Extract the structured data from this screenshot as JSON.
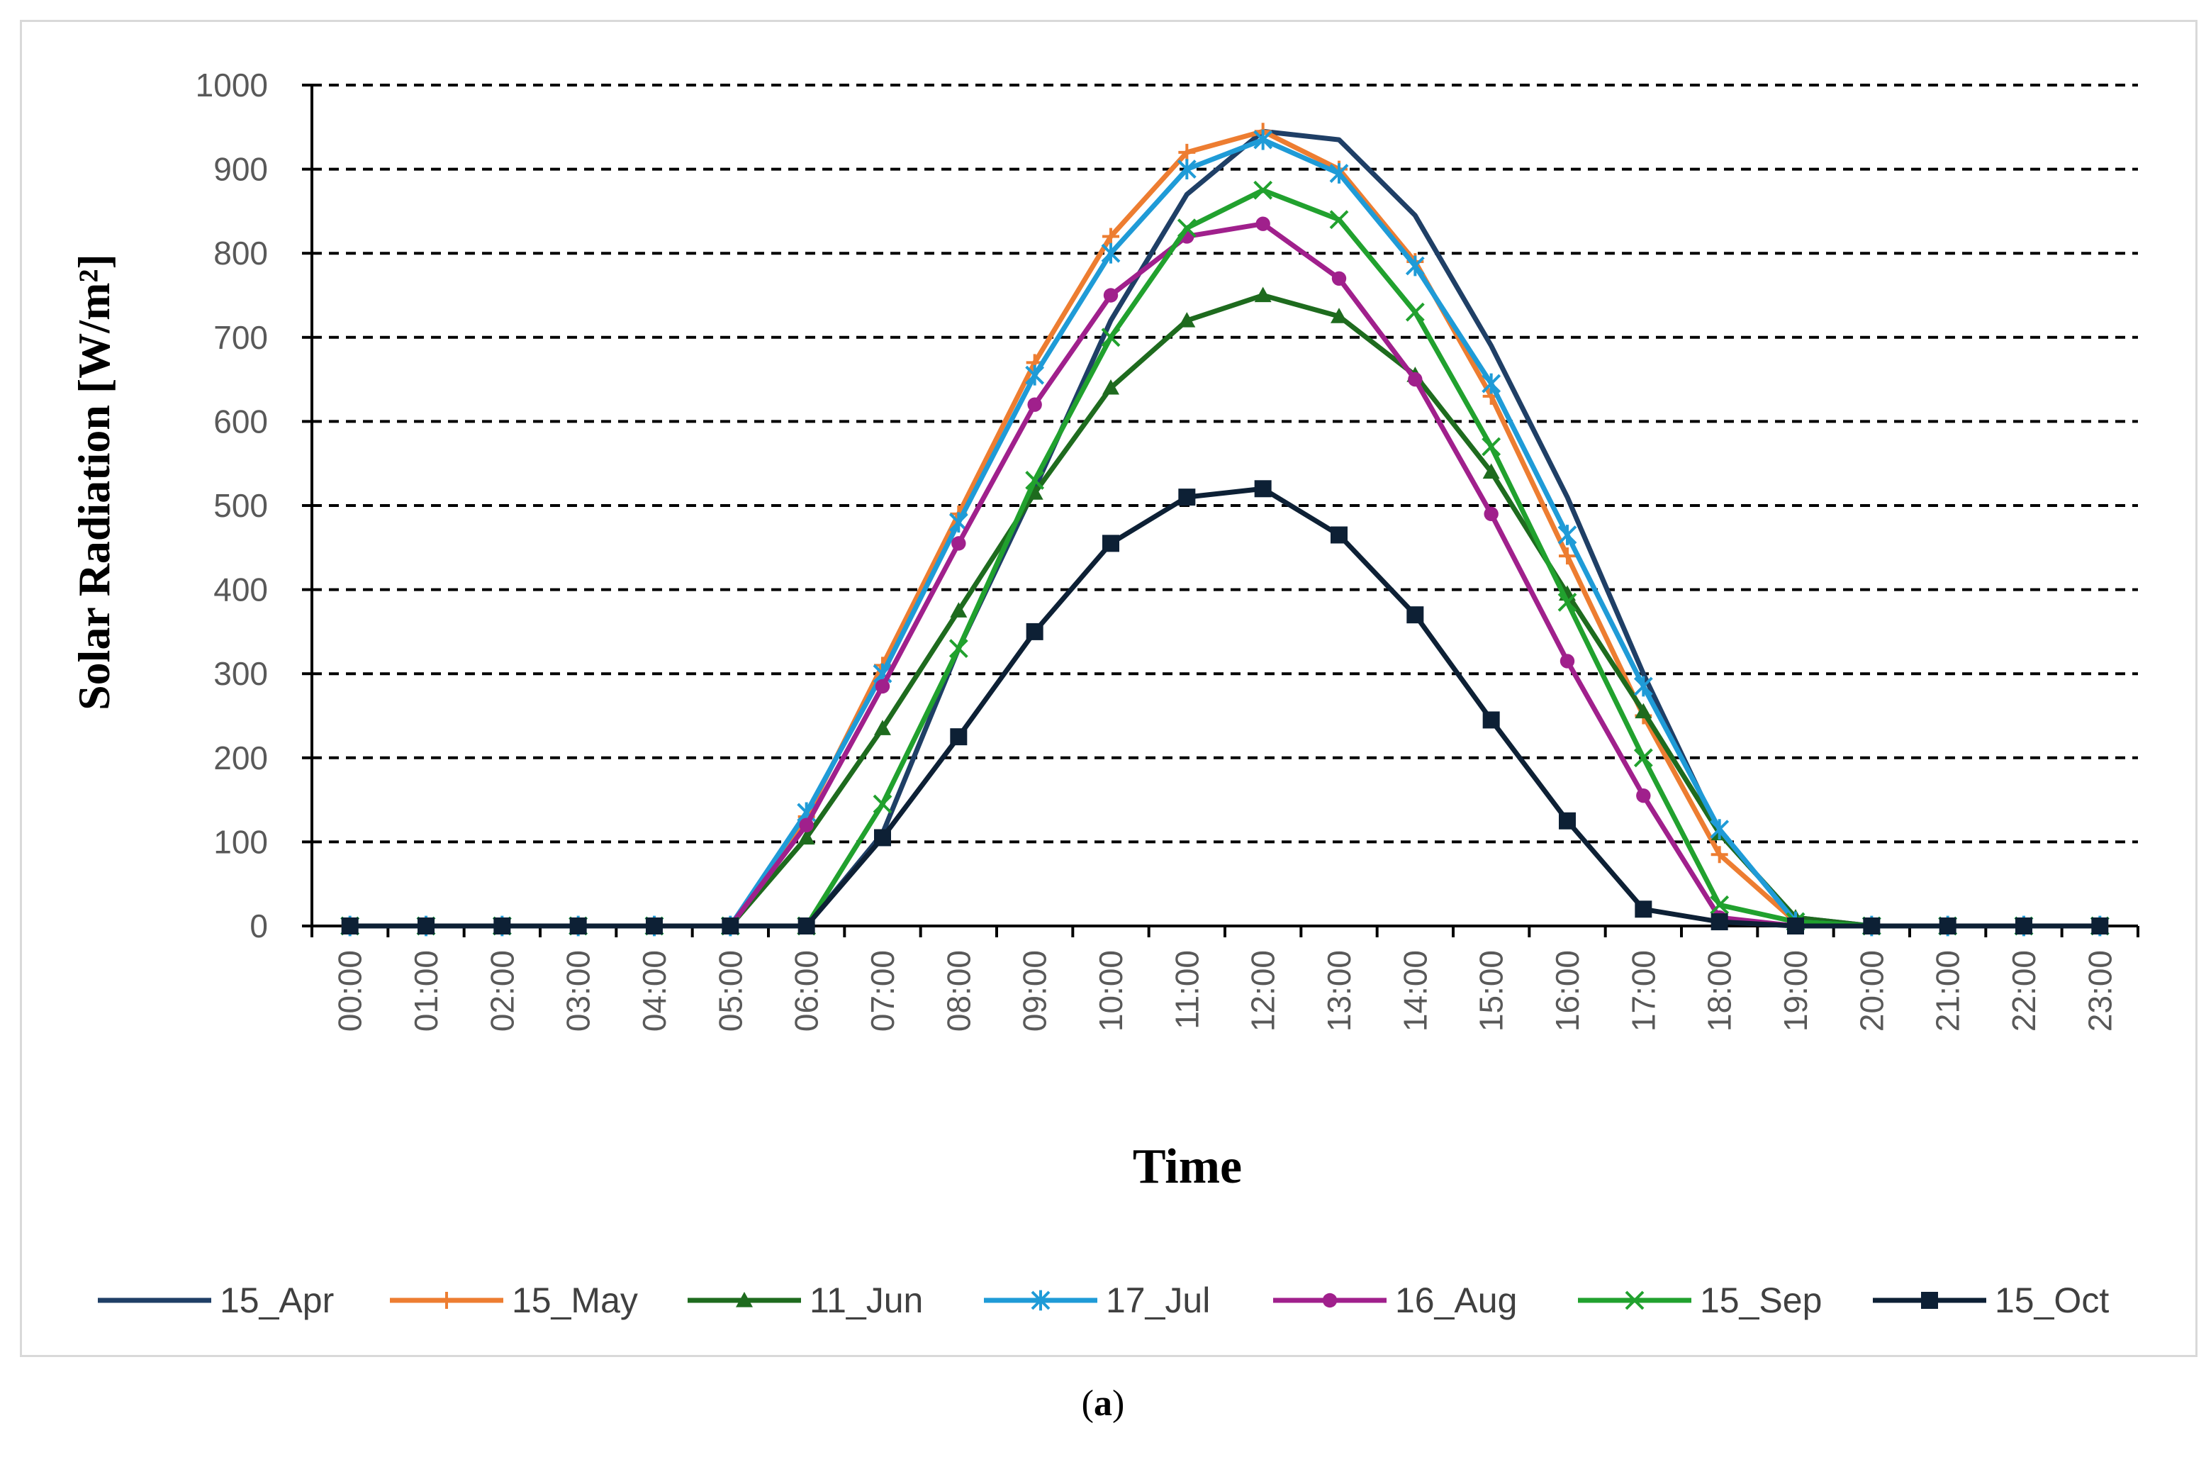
{
  "caption": {
    "open": "(",
    "letter": "a",
    "close": ")"
  },
  "chart_data": {
    "type": "line",
    "title": "",
    "xlabel": "Time",
    "ylabel": "Solar Radiation [W/m²]",
    "ylim": [
      0,
      1000
    ],
    "yticks": [
      "0",
      "100",
      "200",
      "300",
      "400",
      "500",
      "600",
      "700",
      "800",
      "900",
      "1000"
    ],
    "grid": "horizontal-dashed",
    "legend_position": "bottom",
    "categories": [
      "00:00",
      "01:00",
      "02:00",
      "03:00",
      "04:00",
      "05:00",
      "06:00",
      "07:00",
      "08:00",
      "09:00",
      "10:00",
      "11:00",
      "12:00",
      "13:00",
      "14:00",
      "15:00",
      "16:00",
      "17:00",
      "18:00",
      "19:00",
      "20:00",
      "21:00",
      "22:00",
      "23:00"
    ],
    "series": [
      {
        "name": "15_Apr",
        "color": "#1f3f66",
        "marker": "none",
        "values": [
          0,
          0,
          0,
          0,
          0,
          0,
          0,
          110,
          330,
          520,
          720,
          870,
          945,
          935,
          845,
          690,
          510,
          300,
          110,
          10,
          0,
          0,
          0,
          0
        ]
      },
      {
        "name": "15_May",
        "color": "#ed7d31",
        "marker": "plus",
        "values": [
          0,
          0,
          0,
          0,
          0,
          0,
          130,
          310,
          490,
          670,
          820,
          920,
          945,
          900,
          790,
          630,
          440,
          250,
          85,
          5,
          0,
          0,
          0,
          0
        ]
      },
      {
        "name": "11_Jun",
        "color": "#1e6b1e",
        "marker": "triangle",
        "values": [
          0,
          0,
          0,
          0,
          0,
          0,
          105,
          235,
          375,
          515,
          640,
          720,
          750,
          725,
          655,
          540,
          395,
          255,
          110,
          10,
          0,
          0,
          0,
          0
        ]
      },
      {
        "name": "17_Jul",
        "color": "#1f9bd7",
        "marker": "star",
        "values": [
          0,
          0,
          0,
          0,
          0,
          0,
          135,
          300,
          480,
          655,
          800,
          900,
          935,
          895,
          785,
          645,
          465,
          285,
          115,
          5,
          0,
          0,
          0,
          0
        ]
      },
      {
        "name": "16_Aug",
        "color": "#a0208c",
        "marker": "circle",
        "values": [
          0,
          0,
          0,
          0,
          0,
          0,
          120,
          285,
          455,
          620,
          750,
          820,
          835,
          770,
          650,
          490,
          315,
          155,
          10,
          0,
          0,
          0,
          0,
          0
        ]
      },
      {
        "name": "15_Sep",
        "color": "#21a12e",
        "marker": "x",
        "values": [
          0,
          0,
          0,
          0,
          0,
          0,
          0,
          145,
          330,
          530,
          700,
          830,
          875,
          840,
          730,
          570,
          385,
          200,
          25,
          5,
          0,
          0,
          0,
          0
        ]
      },
      {
        "name": "15_Oct",
        "color": "#0d2035",
        "marker": "square",
        "values": [
          0,
          0,
          0,
          0,
          0,
          0,
          0,
          105,
          225,
          350,
          455,
          510,
          520,
          465,
          370,
          245,
          125,
          20,
          5,
          0,
          0,
          0,
          0,
          0
        ]
      }
    ]
  }
}
